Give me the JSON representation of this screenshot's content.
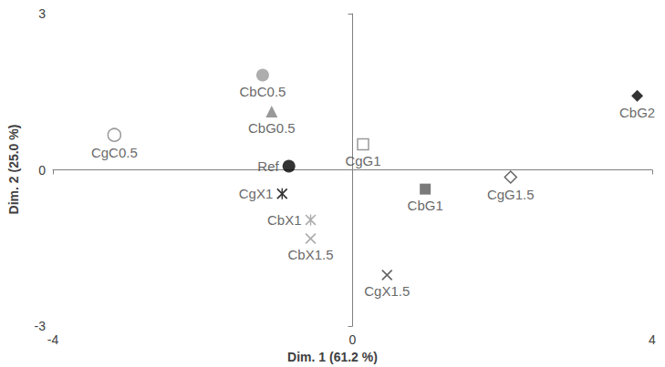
{
  "chart_data": {
    "type": "scatter",
    "x_label": "Dim. 1 (61.2 %)",
    "y_label": "Dim. 2 (25.0 %)",
    "xlim": [
      -4,
      4
    ],
    "xticks": [
      -4,
      0,
      4
    ],
    "ylim": [
      -3,
      3
    ],
    "yticks": [
      -3,
      0,
      3
    ],
    "grid": false,
    "series": [
      {
        "name": "CgC0.5",
        "color": "#7f7f7f",
        "marker": "circle-open",
        "values": [
          [
            -3.18,
            0.67
          ]
        ]
      },
      {
        "name": "CbC0.5",
        "color": "#999999",
        "marker": "circle",
        "values": [
          [
            -1.2,
            1.82
          ]
        ]
      },
      {
        "name": "CbG0.5",
        "color": "#808080",
        "marker": "triangle",
        "values": [
          [
            -1.08,
            1.12
          ]
        ]
      },
      {
        "name": "Ref",
        "color": "#000000",
        "marker": "circle",
        "values": [
          [
            -0.85,
            0.07
          ]
        ]
      },
      {
        "name": "CgG1",
        "color": "#7f7f7f",
        "marker": "square-open",
        "values": [
          [
            0.14,
            0.49
          ]
        ]
      },
      {
        "name": "CbG1",
        "color": "#595959",
        "marker": "square",
        "values": [
          [
            0.97,
            -0.37
          ]
        ]
      },
      {
        "name": "CgG1.5",
        "color": "#404040",
        "marker": "diamond-open",
        "values": [
          [
            2.11,
            -0.14
          ]
        ]
      },
      {
        "name": "CbG2",
        "color": "#000000",
        "marker": "diamond",
        "values": [
          [
            3.8,
            1.42
          ]
        ]
      },
      {
        "name": "CgX1",
        "color": "#000000",
        "marker": "asterisk",
        "values": [
          [
            -0.94,
            -0.46
          ]
        ]
      },
      {
        "name": "CbX1",
        "color": "#999999",
        "marker": "asterisk",
        "values": [
          [
            -0.56,
            -0.96
          ]
        ]
      },
      {
        "name": "CbX1.5",
        "color": "#999999",
        "marker": "x",
        "values": [
          [
            -0.56,
            -1.32
          ]
        ]
      },
      {
        "name": "CgX1.5",
        "color": "#404040",
        "marker": "x",
        "values": [
          [
            0.46,
            -2.02
          ]
        ]
      }
    ]
  }
}
